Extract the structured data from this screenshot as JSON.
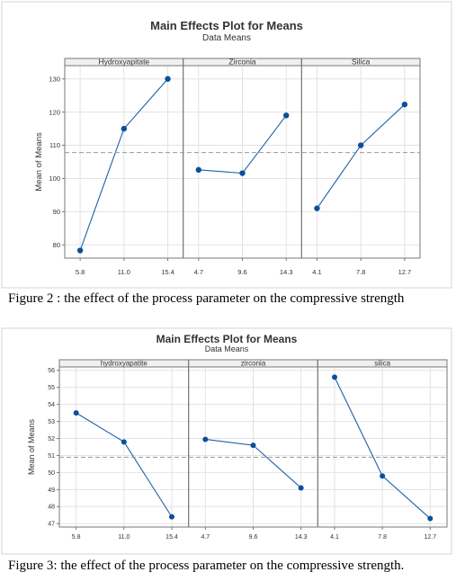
{
  "chart_data": [
    {
      "type": "line",
      "title": "Main Effects Plot for Means",
      "subtitle": "Data Means",
      "ylabel": "Mean of Means",
      "ylim": [
        76,
        134
      ],
      "yticks": [
        80,
        90,
        100,
        110,
        120,
        130
      ],
      "reference_mean": 107.8,
      "grid": true,
      "panels": [
        {
          "name": "Hydroxyapitate",
          "categories": [
            "5.8",
            "11.0",
            "15.4"
          ],
          "values": [
            78.3,
            115.0,
            130.0
          ]
        },
        {
          "name": "Zirconia",
          "categories": [
            "4.7",
            "9.6",
            "14.3"
          ],
          "values": [
            102.6,
            101.6,
            119.0
          ]
        },
        {
          "name": "Silica",
          "categories": [
            "4.1",
            "7.8",
            "12.7"
          ],
          "values": [
            91.0,
            110.0,
            122.3
          ]
        }
      ]
    },
    {
      "type": "line",
      "title": "Main Effects Plot for Means",
      "subtitle": "Data Means",
      "ylabel": "Mean of Means",
      "ylim": [
        46.8,
        56.2
      ],
      "yticks": [
        47,
        48,
        49,
        50,
        51,
        52,
        53,
        54,
        55,
        56
      ],
      "reference_mean": 50.9,
      "grid": true,
      "panels": [
        {
          "name": "hydroxyapatite",
          "categories": [
            "5.8",
            "11.0",
            "15.4"
          ],
          "values": [
            53.5,
            51.8,
            47.4
          ]
        },
        {
          "name": "zirconia",
          "categories": [
            "4.7",
            "9.6",
            "14.3"
          ],
          "values": [
            51.95,
            51.6,
            49.1
          ]
        },
        {
          "name": "silica",
          "categories": [
            "4.1",
            "7.8",
            "12.7"
          ],
          "values": [
            55.6,
            49.8,
            47.3
          ]
        }
      ]
    }
  ],
  "captions": {
    "figure2": "Figure 2 : the effect of the process parameter on the compressive strength",
    "figure3": "Figure 3: the effect of the process parameter on the compressive strength."
  },
  "colors": {
    "line": "#1f5fa8",
    "marker": "#0b4f9c",
    "reference": "#999999",
    "grid": "#e3e3e3",
    "panel_border": "#777777",
    "frame": "#d6d6d6",
    "text": "#333333"
  }
}
